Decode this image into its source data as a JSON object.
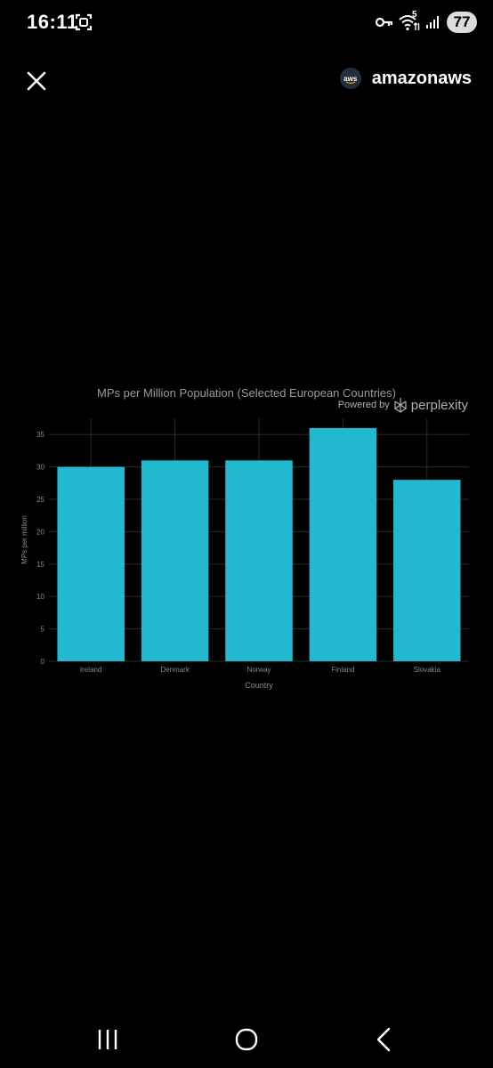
{
  "status_bar": {
    "time": "16:11",
    "battery": "77",
    "network_badge": "5",
    "icons": [
      "screenshot-icon",
      "key-icon",
      "wifi-icon",
      "signal-icon",
      "battery-icon"
    ]
  },
  "header": {
    "close_icon": "close-icon",
    "account_name": "amazonaws",
    "avatar_text": "aws"
  },
  "chart_data": {
    "type": "bar",
    "title": "MPs per Million Population (Selected European Countries)",
    "xlabel": "Country",
    "ylabel": "MPs per million",
    "categories": [
      "Ireland",
      "Denmark",
      "Norway",
      "Finland",
      "Slovakia"
    ],
    "values": [
      30,
      31,
      31,
      36,
      28
    ],
    "ylim": [
      0,
      37.5
    ],
    "yticks": [
      0,
      5,
      10,
      15,
      20,
      25,
      30,
      35
    ],
    "bar_color": "#22b8cf",
    "grid": true,
    "background": "#000000"
  },
  "watermark": {
    "powered_by": "Powered by",
    "brand": "perplexity"
  },
  "nav_bar": {
    "icons": [
      "recent-apps-icon",
      "home-icon",
      "back-icon"
    ]
  }
}
